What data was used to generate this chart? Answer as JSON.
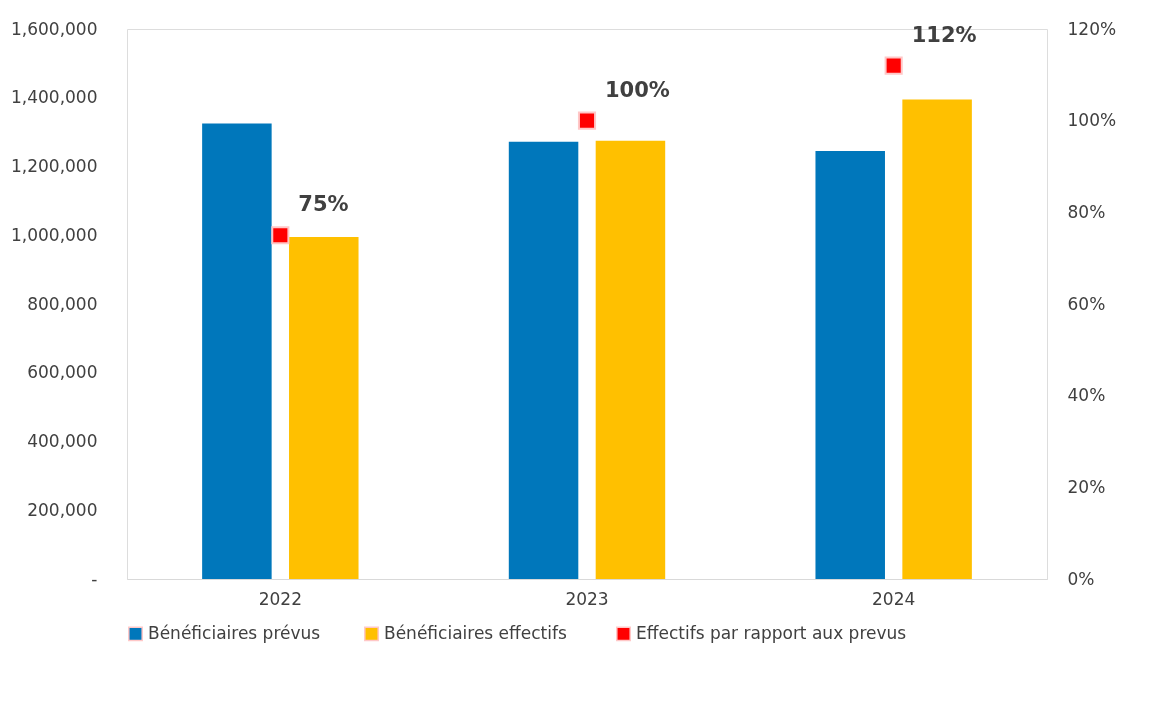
{
  "chart_data": {
    "type": "bar",
    "categories": [
      "2022",
      "2023",
      "2024"
    ],
    "series": [
      {
        "name": "Bénéficiaires prévus",
        "color": "#0077bb",
        "values": [
          1325000,
          1272000,
          1245000
        ]
      },
      {
        "name": "Bénéficiaires  effectifs",
        "color": "#ffc000",
        "values": [
          995000,
          1275000,
          1395000
        ]
      },
      {
        "name": "Effectifs par rapport aux prevus",
        "type": "scatter",
        "axis": "y2",
        "color": "#ff0000",
        "marker": "square",
        "values": [
          75,
          100,
          112
        ],
        "value_labels": [
          "75%",
          "100%",
          "112%"
        ]
      }
    ],
    "ylim": [
      0,
      1600000
    ],
    "yticks": [
      {
        "value": 0,
        "label": "-"
      },
      {
        "value": 200000,
        "label": "200,000"
      },
      {
        "value": 400000,
        "label": "400,000"
      },
      {
        "value": 600000,
        "label": "600,000"
      },
      {
        "value": 800000,
        "label": "800,000"
      },
      {
        "value": 1000000,
        "label": "1,000,000"
      },
      {
        "value": 1200000,
        "label": "1,200,000"
      },
      {
        "value": 1400000,
        "label": "1,400,000"
      },
      {
        "value": 1600000,
        "label": "1,600,000"
      }
    ],
    "y2lim": [
      0,
      120
    ],
    "y2ticks": [
      {
        "value": 0,
        "label": "0%"
      },
      {
        "value": 20,
        "label": "20%"
      },
      {
        "value": 40,
        "label": "40%"
      },
      {
        "value": 60,
        "label": "60%"
      },
      {
        "value": 80,
        "label": "80%"
      },
      {
        "value": 100,
        "label": "100%"
      },
      {
        "value": 120,
        "label": "120%"
      }
    ],
    "legend": "bottom",
    "grid": false
  }
}
